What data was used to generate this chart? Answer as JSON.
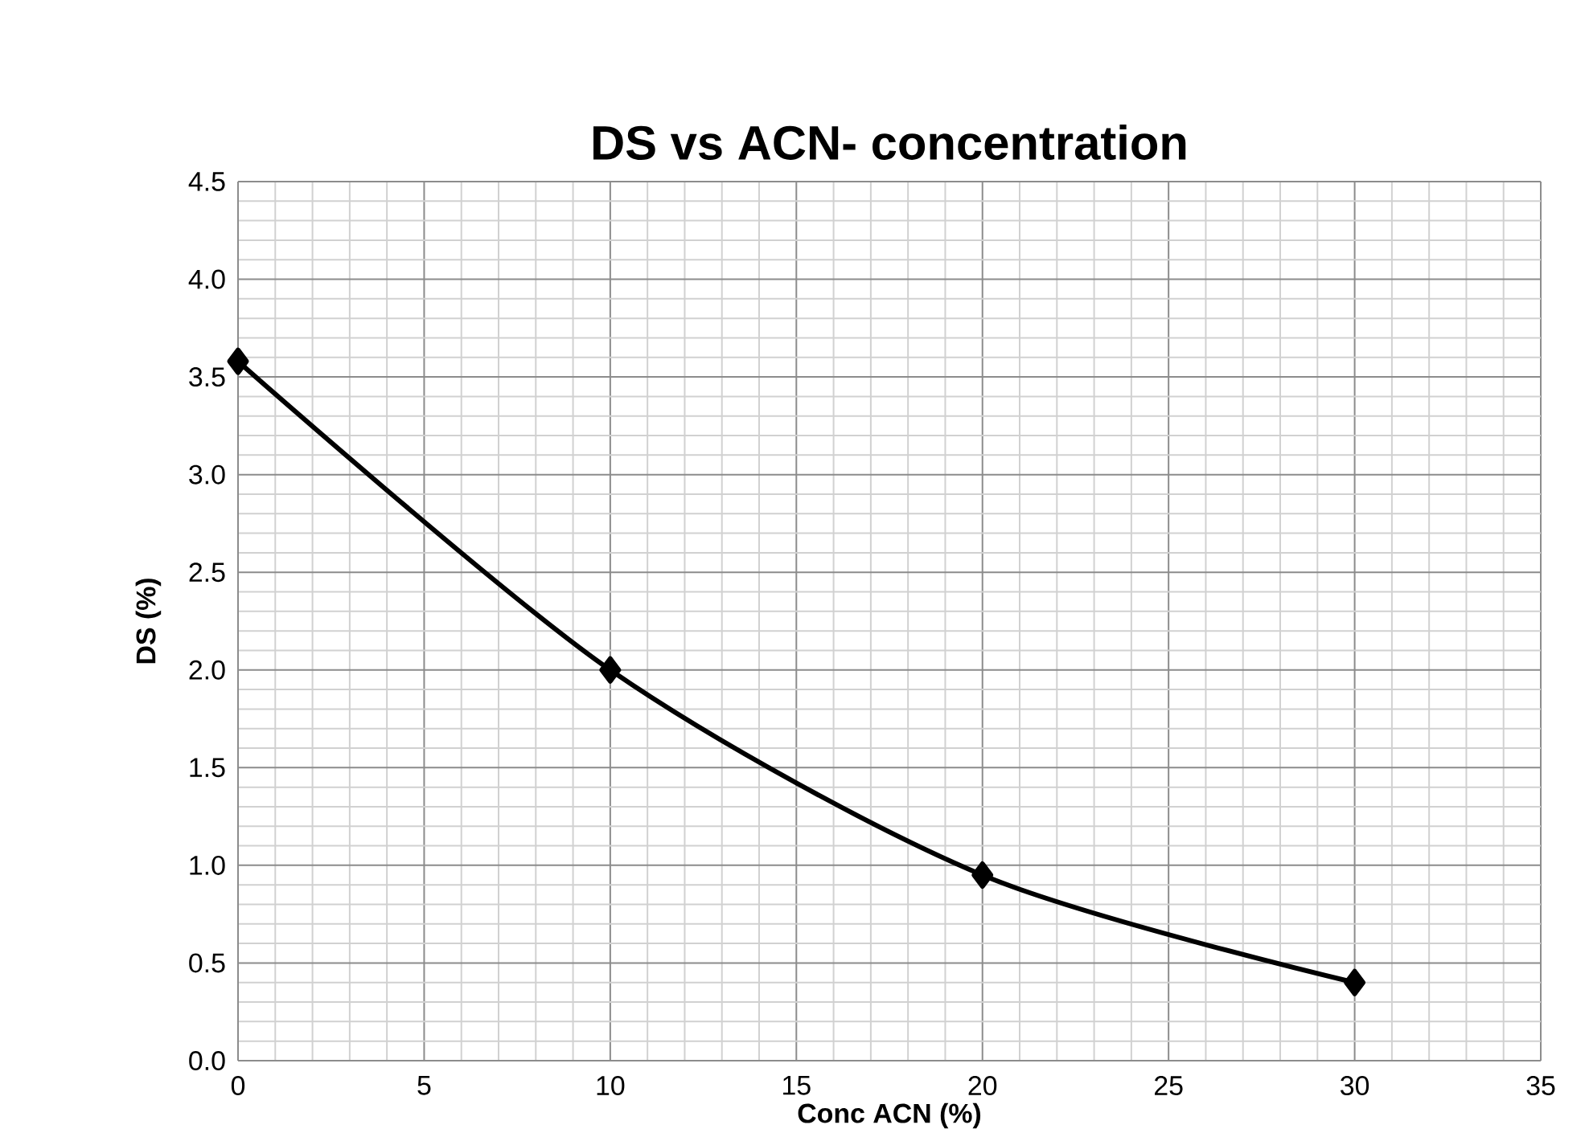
{
  "chart_data": {
    "type": "line",
    "title": "DS vs ACN- concentration",
    "xlabel": "Conc ACN (%)",
    "ylabel": "DS (%)",
    "x": [
      0,
      10,
      20,
      30
    ],
    "values": [
      3.58,
      2.0,
      0.95,
      0.4
    ],
    "color": "#000000",
    "xlim": [
      0,
      35
    ],
    "xticks": [
      0,
      5,
      10,
      15,
      20,
      25,
      30,
      35
    ],
    "ylim": [
      0,
      4.5
    ],
    "yticks": [
      {
        "value": 0,
        "label": "0.0"
      },
      {
        "value": 0.5,
        "label": "0.5"
      },
      {
        "value": 1,
        "label": "1.0"
      },
      {
        "value": 1.5,
        "label": "1.5"
      },
      {
        "value": 2,
        "label": "2.0"
      },
      {
        "value": 2.5,
        "label": "2.5"
      },
      {
        "value": 3,
        "label": "3.0"
      },
      {
        "value": 3.5,
        "label": "3.5"
      },
      {
        "value": 4,
        "label": "4.0"
      },
      {
        "value": 4.5,
        "label": "4.5"
      }
    ],
    "grid": true,
    "marker": "diamond",
    "line_style": "solid"
  }
}
